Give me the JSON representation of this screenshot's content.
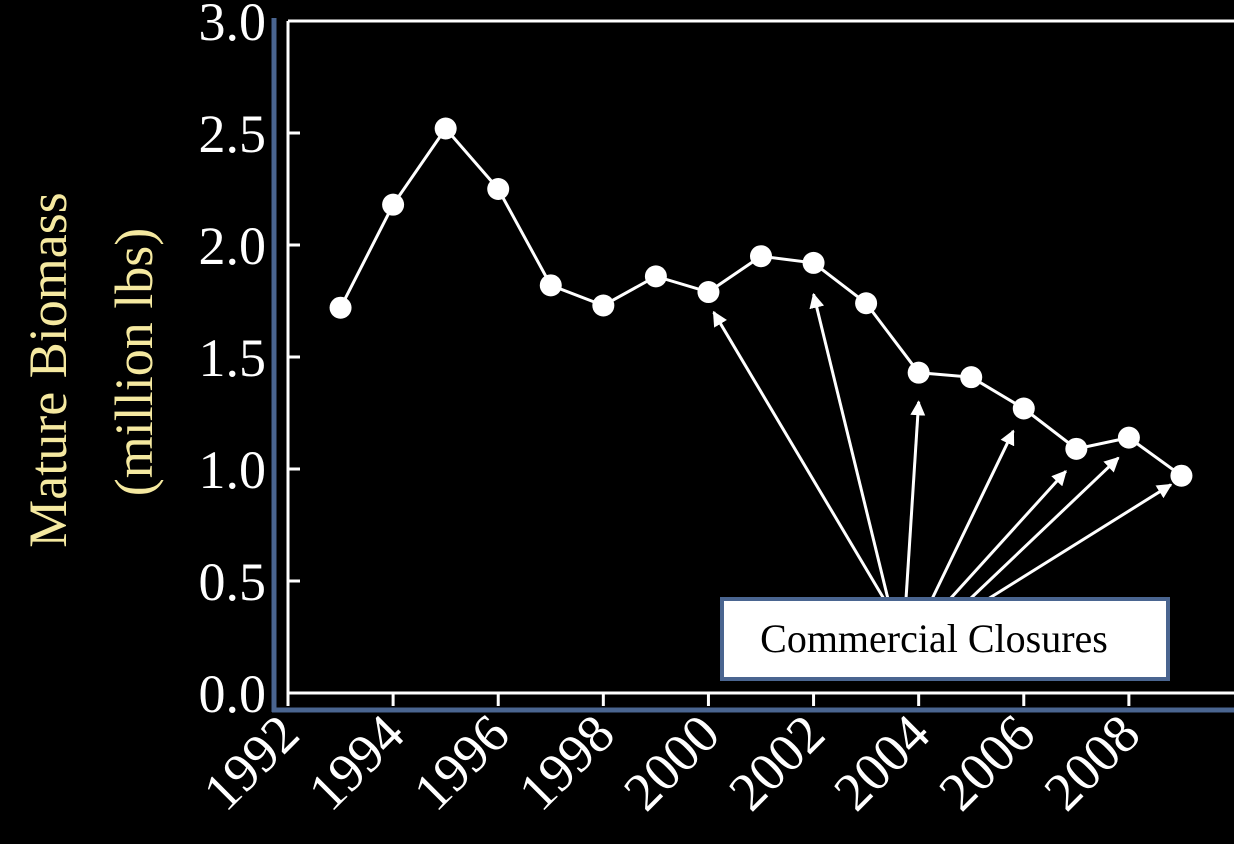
{
  "chart_data": {
    "type": "line",
    "x": [
      1993,
      1994,
      1995,
      1996,
      1997,
      1998,
      1999,
      2000,
      2001,
      2002,
      2003,
      2004,
      2005,
      2006,
      2007,
      2008,
      2009
    ],
    "series": [
      {
        "values": [
          1.72,
          2.18,
          2.52,
          2.25,
          1.82,
          1.73,
          1.86,
          1.79,
          1.95,
          1.92,
          1.74,
          1.43,
          1.41,
          1.27,
          1.09,
          1.14,
          0.97
        ]
      }
    ],
    "xticks": [
      "1992",
      "1994",
      "1996",
      "1998",
      "2000",
      "2002",
      "2004",
      "2006",
      "2008"
    ],
    "yticks": [
      "0.0",
      "0.5",
      "1.0",
      "1.5",
      "2.0",
      "2.5",
      "3.0"
    ],
    "ylabel_line1": "Mature Biomass",
    "ylabel_line2": "(million lbs)",
    "xlim": [
      1992,
      2010
    ],
    "ylim": [
      0,
      3.0
    ],
    "annotation": {
      "text": "Commercial Closures",
      "arrow_targets": [
        [
          2000.1,
          1.7
        ],
        [
          2002.0,
          1.78
        ],
        [
          2004.0,
          1.3
        ],
        [
          2005.8,
          1.17
        ],
        [
          2006.8,
          0.99
        ],
        [
          2007.8,
          1.05
        ],
        [
          2008.8,
          0.93
        ]
      ]
    },
    "colors": {
      "background": "#000000",
      "line": "#ffffff",
      "ylabel": "#f5e9a0",
      "frame_accent": "#4a6590",
      "callout_fill": "#ffffff",
      "callout_border": "#4a6590"
    }
  }
}
